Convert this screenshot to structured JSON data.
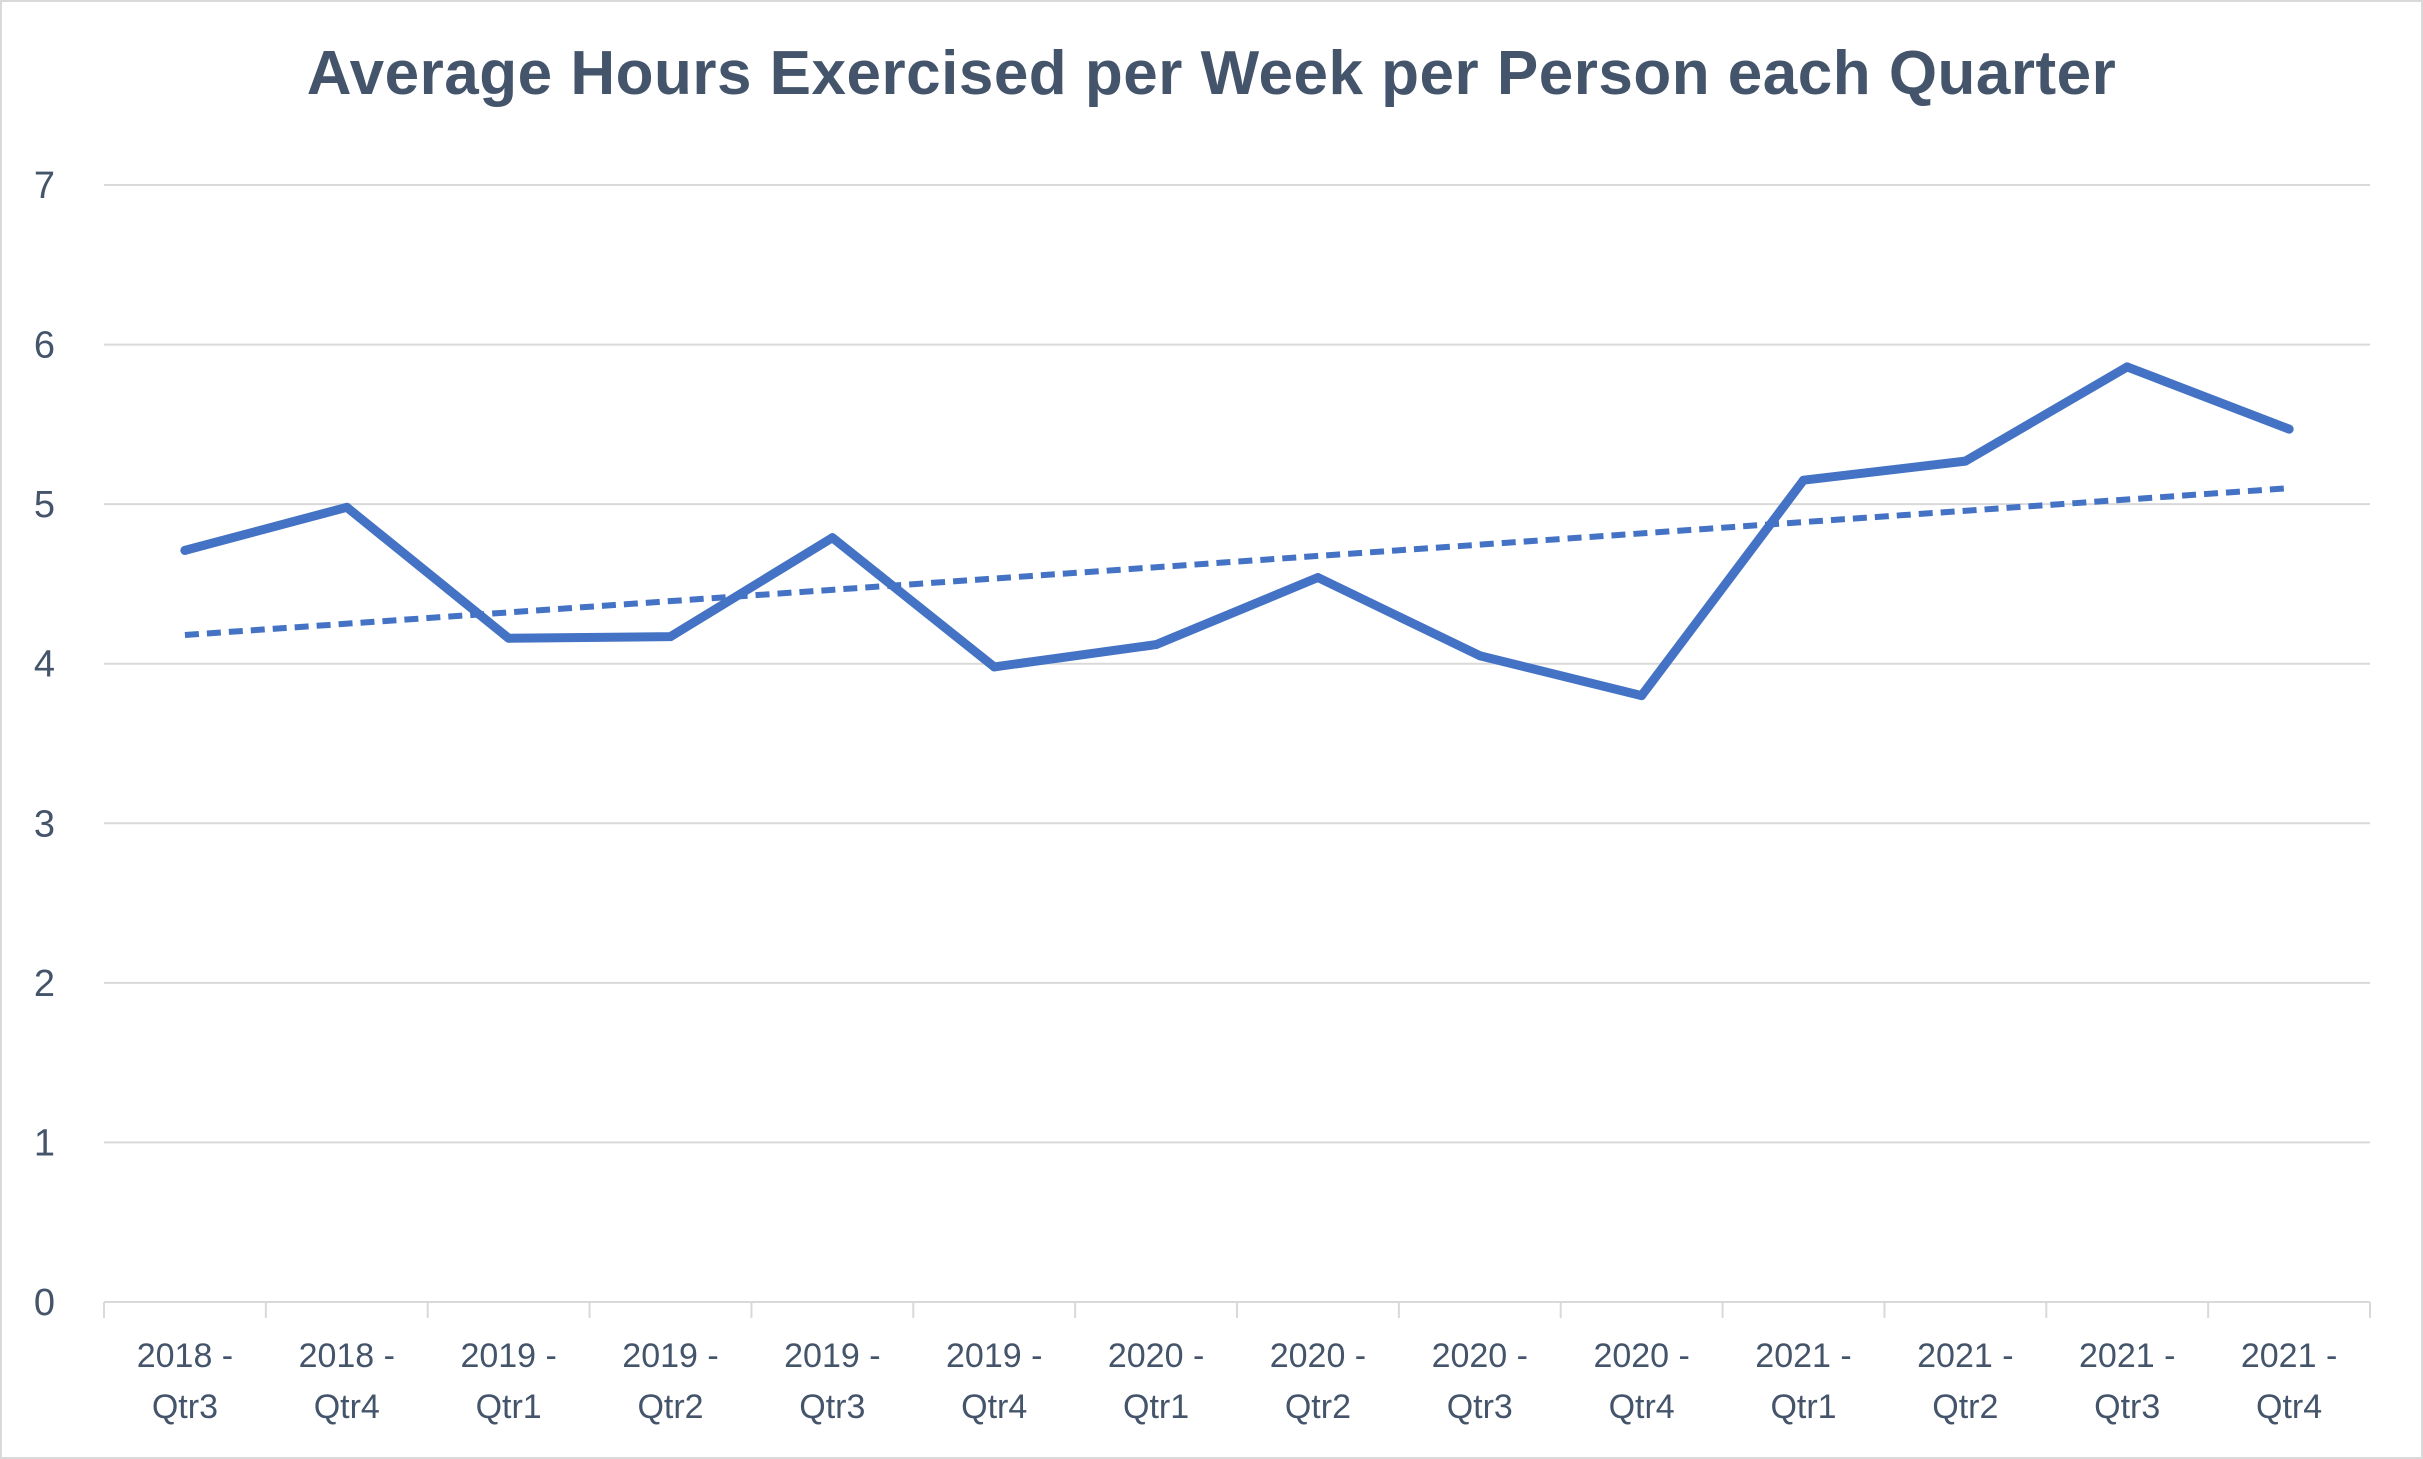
{
  "colors": {
    "series": "#4472c4",
    "trendline": "#4472c4",
    "gridline": "#d9d9d9",
    "text": "#44546a"
  },
  "chart_data": {
    "type": "line",
    "title": "Average Hours Exercised per Week per Person each Quarter",
    "xlabel": "",
    "ylabel": "",
    "ylim": [
      0,
      7
    ],
    "yticks": [
      "0",
      "1",
      "2",
      "3",
      "4",
      "5",
      "6",
      "7"
    ],
    "grid": true,
    "legend": "none",
    "categories": [
      "2018 - Qtr3",
      "2018 - Qtr4",
      "2019 - Qtr1",
      "2019 - Qtr2",
      "2019 - Qtr3",
      "2019 - Qtr4",
      "2020 - Qtr1",
      "2020 - Qtr2",
      "2020 - Qtr3",
      "2020 - Qtr4",
      "2021 - Qtr1",
      "2021 - Qtr2",
      "2021 - Qtr3",
      "2021 - Qtr4"
    ],
    "category_lines": [
      [
        "2018 -",
        "Qtr3"
      ],
      [
        "2018 -",
        "Qtr4"
      ],
      [
        "2019 -",
        "Qtr1"
      ],
      [
        "2019 -",
        "Qtr2"
      ],
      [
        "2019 -",
        "Qtr3"
      ],
      [
        "2019 -",
        "Qtr4"
      ],
      [
        "2020 -",
        "Qtr1"
      ],
      [
        "2020 -",
        "Qtr2"
      ],
      [
        "2020 -",
        "Qtr3"
      ],
      [
        "2020 -",
        "Qtr4"
      ],
      [
        "2021 -",
        "Qtr1"
      ],
      [
        "2021 -",
        "Qtr2"
      ],
      [
        "2021 -",
        "Qtr3"
      ],
      [
        "2021 -",
        "Qtr4"
      ]
    ],
    "series": [
      {
        "values": [
          4.71,
          4.98,
          4.16,
          4.17,
          4.79,
          3.98,
          4.12,
          4.54,
          4.05,
          3.8,
          5.15,
          5.27,
          5.86,
          5.47
        ],
        "style": "solid"
      }
    ],
    "trendline": {
      "type": "linear",
      "style": "dashed",
      "start": 4.18,
      "end": 5.1
    }
  }
}
